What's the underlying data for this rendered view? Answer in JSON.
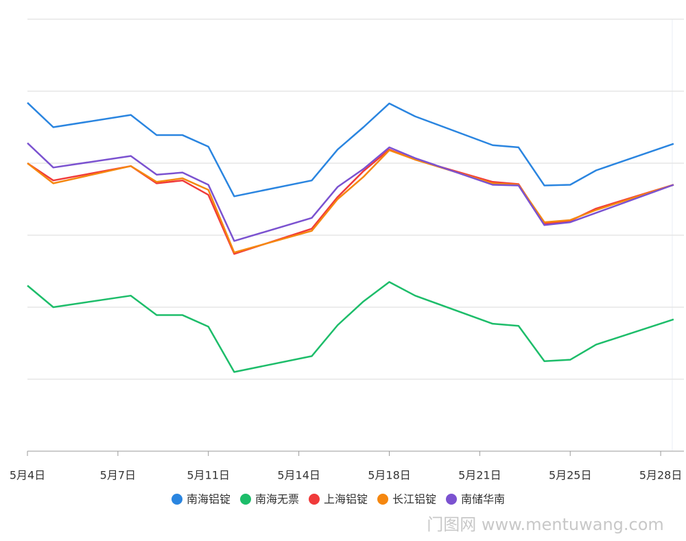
{
  "chart_data": {
    "type": "line",
    "x": [
      0,
      1,
      4,
      5,
      6,
      7,
      8,
      11,
      12,
      13,
      14,
      15,
      18,
      19,
      20,
      21,
      22,
      25
    ],
    "xlim": [
      0,
      25.4
    ],
    "xticks": [
      {
        "value": 0,
        "label": "5月4日"
      },
      {
        "value": 3.5,
        "label": "5月7日"
      },
      {
        "value": 7,
        "label": "5月11日"
      },
      {
        "value": 10.5,
        "label": "5月14日"
      },
      {
        "value": 14,
        "label": "5月18日"
      },
      {
        "value": 17.5,
        "label": "5月21日"
      },
      {
        "value": 21,
        "label": "5月25日"
      },
      {
        "value": 24.5,
        "label": "5月28日"
      }
    ],
    "ylim": [
      0,
      6
    ],
    "yticks": [
      0,
      1,
      2,
      3,
      4,
      5,
      6
    ],
    "grid": true,
    "legend": "bottom",
    "series": [
      {
        "name": "南海铝锭",
        "color": "#2a85e0",
        "values": [
          4.84,
          4.5,
          4.67,
          4.39,
          4.39,
          4.23,
          3.54,
          3.76,
          4.19,
          4.5,
          4.83,
          4.65,
          4.25,
          4.22,
          3.69,
          3.7,
          3.9,
          4.27
        ]
      },
      {
        "name": "南海无票",
        "color": "#1dbd6a",
        "values": [
          2.3,
          2.0,
          2.16,
          1.89,
          1.89,
          1.73,
          1.1,
          1.32,
          1.75,
          2.08,
          2.35,
          2.16,
          1.77,
          1.74,
          1.25,
          1.27,
          1.48,
          1.83
        ]
      },
      {
        "name": "上海铝锭",
        "color": "#f03a3a",
        "values": [
          4.0,
          3.76,
          3.96,
          3.72,
          3.76,
          3.56,
          2.74,
          3.09,
          3.53,
          3.89,
          4.19,
          4.05,
          3.74,
          3.71,
          3.16,
          3.2,
          3.37,
          3.7
        ]
      },
      {
        "name": "长江铝锭",
        "color": "#f5870f",
        "values": [
          4.0,
          3.72,
          3.96,
          3.74,
          3.79,
          3.63,
          2.76,
          3.06,
          3.5,
          3.81,
          4.18,
          4.05,
          3.72,
          3.7,
          3.18,
          3.21,
          3.35,
          3.7
        ]
      },
      {
        "name": "南储华南",
        "color": "#7b52d0",
        "values": [
          4.28,
          3.94,
          4.1,
          3.84,
          3.87,
          3.7,
          2.92,
          3.24,
          3.67,
          3.92,
          4.22,
          4.07,
          3.7,
          3.69,
          3.14,
          3.18,
          3.31,
          3.7
        ]
      }
    ],
    "watermark": "门图网 www.mentuwang.com"
  }
}
